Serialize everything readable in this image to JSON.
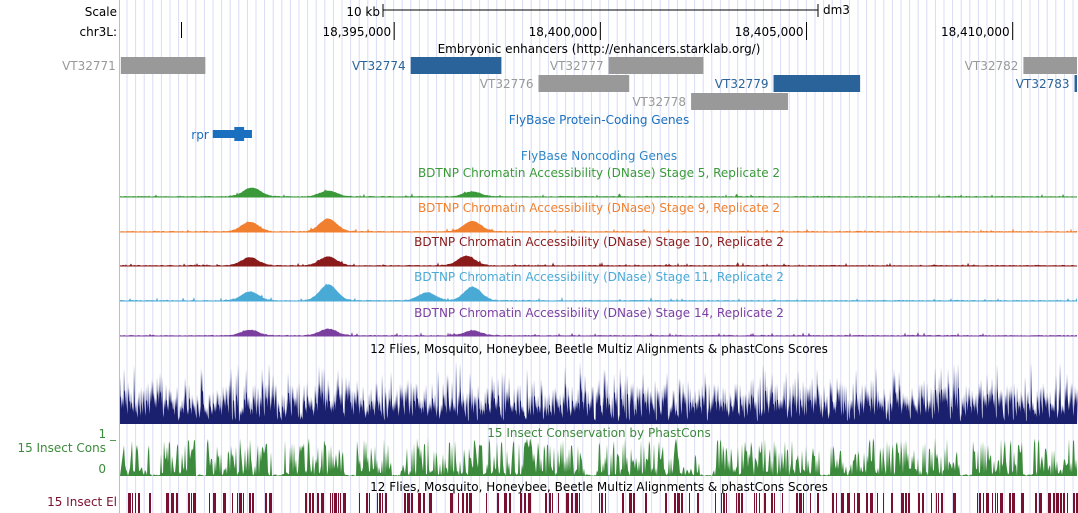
{
  "ruler": {
    "scale_label": "Scale",
    "chrom_label": "chr3L:",
    "scale_bar_text": "10 kb",
    "assembly": "dm3",
    "positions": [
      {
        "label": "18,395,000",
        "bp": 18395000
      },
      {
        "label": "18,400,000",
        "bp": 18400000
      },
      {
        "label": "18,405,000",
        "bp": 18405000
      },
      {
        "label": "18,410,000",
        "bp": 18410000
      }
    ]
  },
  "region": {
    "start_bp": 18388350,
    "end_bp": 18411560
  },
  "enhancers": {
    "title": "Embryonic enhancers (http://enhancers.starklab.org/)",
    "color_gray": "#999999",
    "color_blue": "#2a6399",
    "items": [
      {
        "name": "VT32771",
        "start": 18388370,
        "end": 18390420,
        "row": 0,
        "highlight": false
      },
      {
        "name": "VT32774",
        "start": 18395400,
        "end": 18397600,
        "row": 0,
        "highlight": true
      },
      {
        "name": "VT32777",
        "start": 18400200,
        "end": 18402500,
        "row": 0,
        "highlight": false
      },
      {
        "name": "VT32782",
        "start": 18410260,
        "end": 18411560,
        "row": 0,
        "highlight": false
      },
      {
        "name": "VT32776",
        "start": 18398500,
        "end": 18400700,
        "row": 1,
        "highlight": false
      },
      {
        "name": "VT32779",
        "start": 18404200,
        "end": 18406300,
        "row": 1,
        "highlight": true
      },
      {
        "name": "VT32783",
        "start": 18411500,
        "end": 18411560,
        "row": 1,
        "highlight": true
      },
      {
        "name": "VT32778",
        "start": 18402200,
        "end": 18404550,
        "row": 2,
        "highlight": false
      }
    ]
  },
  "protein_genes": {
    "title": "FlyBase Protein-Coding Genes",
    "color": "#1a6fbf",
    "gene": {
      "name": "rpr",
      "start": 18390600,
      "end": 18391550
    }
  },
  "noncoding_genes": {
    "title": "FlyBase Noncoding Genes",
    "color": "#2e87c8"
  },
  "dnase_tracks": [
    {
      "title": "BDTNP Chromatin Accessibility (DNase) Stage 5, Replicate 2",
      "color": "#3a9a3a",
      "peaks": [
        {
          "bp": 18391550,
          "h": 0.55
        },
        {
          "bp": 18393400,
          "h": 0.35
        },
        {
          "bp": 18396900,
          "h": 0.3
        }
      ]
    },
    {
      "title": "BDTNP Chromatin Accessibility (DNase) Stage 9, Replicate 2",
      "color": "#f08030",
      "peaks": [
        {
          "bp": 18391500,
          "h": 0.6
        },
        {
          "bp": 18393400,
          "h": 0.8
        },
        {
          "bp": 18396900,
          "h": 0.65
        }
      ]
    },
    {
      "title": "BDTNP Chromatin Accessibility (DNase) Stage 10, Replicate 2",
      "color": "#8b1a1a",
      "peaks": [
        {
          "bp": 18391500,
          "h": 0.5
        },
        {
          "bp": 18393400,
          "h": 0.55
        },
        {
          "bp": 18396750,
          "h": 0.6
        }
      ]
    },
    {
      "title": "BDTNP Chromatin Accessibility (DNase) Stage 11, Replicate 2",
      "color": "#4aaad6",
      "peaks": [
        {
          "bp": 18391500,
          "h": 0.55
        },
        {
          "bp": 18393400,
          "h": 1.0
        },
        {
          "bp": 18396900,
          "h": 0.85
        },
        {
          "bp": 18395800,
          "h": 0.5
        }
      ]
    },
    {
      "title": "BDTNP Chromatin Accessibility (DNase) Stage 14, Replicate 2",
      "color": "#7b3fa0",
      "peaks": [
        {
          "bp": 18391500,
          "h": 0.35
        },
        {
          "bp": 18393400,
          "h": 0.4
        },
        {
          "bp": 18396900,
          "h": 0.3
        }
      ]
    }
  ],
  "multiz": {
    "title": "12 Flies, Mosquito, Honeybee, Beetle Multiz Alignments & phastCons Scores",
    "color": "#1a1f6e"
  },
  "phastcons": {
    "title": "15 Insect Conservation by PhastCons",
    "side_label": "15 Insect Cons",
    "axis_max": "1 _",
    "axis_min": "0",
    "color": "#3c8a3c"
  },
  "multiz2": {
    "title": "12 Flies, Mosquito, Honeybee, Beetle Multiz Alignments & phastCons Scores"
  },
  "elements": {
    "side_label": "15 Insect El",
    "color": "#7a1030"
  }
}
